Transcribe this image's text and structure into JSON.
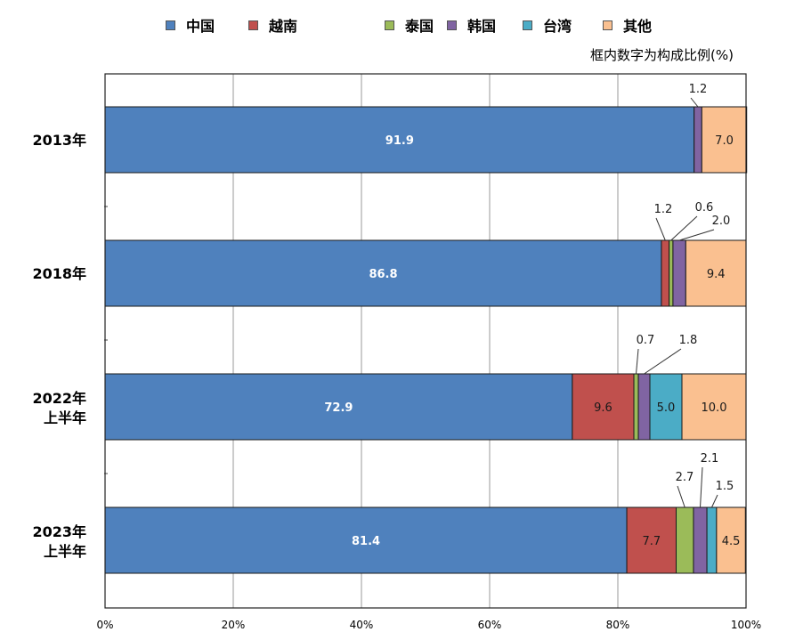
{
  "chart_data": {
    "type": "bar",
    "orientation": "horizontal",
    "stacked": true,
    "percent_stacked": true,
    "note": "框内数字为构成比例(%)",
    "categories": [
      [
        "2013年"
      ],
      [
        "2018年"
      ],
      [
        "2022年",
        "上半年"
      ],
      [
        "2023年",
        "上半年"
      ]
    ],
    "series": [
      {
        "name": "中国",
        "color": "#4f81bd",
        "values": [
          91.9,
          86.8,
          72.9,
          81.4
        ]
      },
      {
        "name": "越南",
        "color": "#c0504d",
        "values": [
          0,
          1.2,
          9.6,
          7.7
        ]
      },
      {
        "name": "泰国",
        "color": "#9bbb59",
        "values": [
          0,
          0.6,
          0.7,
          2.7
        ]
      },
      {
        "name": "韩国",
        "color": "#8064a2",
        "values": [
          1.2,
          2.0,
          1.8,
          2.1
        ]
      },
      {
        "name": "台湾",
        "color": "#4bacc6",
        "values": [
          0,
          0,
          5.0,
          1.5
        ]
      },
      {
        "name": "其他",
        "color": "#fac090",
        "values": [
          7.0,
          9.4,
          10.0,
          4.5
        ]
      }
    ],
    "data_labels": [
      {
        "bar": 0,
        "series": 0,
        "text": "91.9",
        "placement": "inside"
      },
      {
        "bar": 0,
        "series": 3,
        "text": "1.2",
        "placement": "above"
      },
      {
        "bar": 0,
        "series": 5,
        "text": "7.0",
        "placement": "inside"
      },
      {
        "bar": 1,
        "series": 0,
        "text": "86.8",
        "placement": "inside"
      },
      {
        "bar": 1,
        "series": 1,
        "text": "1.2",
        "placement": "callout"
      },
      {
        "bar": 1,
        "series": 2,
        "text": "0.6",
        "placement": "callout"
      },
      {
        "bar": 1,
        "series": 3,
        "text": "2.0",
        "placement": "callout"
      },
      {
        "bar": 1,
        "series": 5,
        "text": "9.4",
        "placement": "inside"
      },
      {
        "bar": 2,
        "series": 0,
        "text": "72.9",
        "placement": "inside"
      },
      {
        "bar": 2,
        "series": 1,
        "text": "9.6",
        "placement": "inside"
      },
      {
        "bar": 2,
        "series": 2,
        "text": "0.7",
        "placement": "callout"
      },
      {
        "bar": 2,
        "series": 3,
        "text": "1.8",
        "placement": "callout"
      },
      {
        "bar": 2,
        "series": 4,
        "text": "5.0",
        "placement": "inside"
      },
      {
        "bar": 2,
        "series": 5,
        "text": "10.0",
        "placement": "inside"
      },
      {
        "bar": 3,
        "series": 0,
        "text": "81.4",
        "placement": "inside"
      },
      {
        "bar": 3,
        "series": 1,
        "text": "7.7",
        "placement": "inside"
      },
      {
        "bar": 3,
        "series": 2,
        "text": "2.7",
        "placement": "callout"
      },
      {
        "bar": 3,
        "series": 3,
        "text": "2.1",
        "placement": "callout"
      },
      {
        "bar": 3,
        "series": 4,
        "text": "1.5",
        "placement": "callout"
      },
      {
        "bar": 3,
        "series": 5,
        "text": "4.5",
        "placement": "inside"
      }
    ],
    "x_ticks": [
      "0%",
      "20%",
      "40%",
      "60%",
      "80%",
      "100%"
    ],
    "xlim": [
      0,
      100
    ],
    "grid": true,
    "legend_position": "top"
  }
}
